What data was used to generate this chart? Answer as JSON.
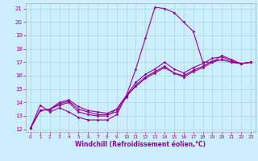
{
  "xlabel": "Windchill (Refroidissement éolien,°C)",
  "bg_color": "#cceeff",
  "grid_color": "#aadddd",
  "line_color": "#990099",
  "spine_color": "#aaaaaa",
  "xmin": -0.5,
  "xmax": 23.5,
  "ymin": 11.8,
  "ymax": 21.4,
  "xticks": [
    0,
    1,
    2,
    3,
    4,
    5,
    6,
    7,
    8,
    9,
    10,
    11,
    12,
    13,
    14,
    15,
    16,
    17,
    18,
    19,
    20,
    21,
    22,
    23
  ],
  "yticks": [
    12,
    13,
    14,
    15,
    16,
    17,
    18,
    19,
    20,
    21
  ],
  "series": [
    [
      12.1,
      13.8,
      13.3,
      13.6,
      13.3,
      12.9,
      12.7,
      12.7,
      12.7,
      13.1,
      14.5,
      16.5,
      18.8,
      21.1,
      21.0,
      20.7,
      20.0,
      19.3,
      17.0,
      17.0,
      17.5,
      17.2,
      16.9,
      17.0
    ],
    [
      12.1,
      13.4,
      13.5,
      13.8,
      14.0,
      13.3,
      13.1,
      13.0,
      13.0,
      13.5,
      14.5,
      15.2,
      15.8,
      16.2,
      16.6,
      16.2,
      16.0,
      16.4,
      16.7,
      17.1,
      17.2,
      17.0,
      16.9,
      17.0
    ],
    [
      12.1,
      13.4,
      13.5,
      13.9,
      14.1,
      13.5,
      13.3,
      13.1,
      13.1,
      13.3,
      14.4,
      15.3,
      15.9,
      16.3,
      16.7,
      16.2,
      15.9,
      16.3,
      16.6,
      17.0,
      17.2,
      17.0,
      16.9,
      17.0
    ],
    [
      12.1,
      13.4,
      13.5,
      14.0,
      14.2,
      13.7,
      13.4,
      13.3,
      13.2,
      13.5,
      14.5,
      15.5,
      16.1,
      16.5,
      17.0,
      16.5,
      16.2,
      16.6,
      16.9,
      17.3,
      17.4,
      17.1,
      16.9,
      17.0
    ]
  ],
  "xlabel_fontsize": 5.5,
  "tick_fontsize": 5,
  "marker_size": 1.5,
  "line_width": 0.8
}
